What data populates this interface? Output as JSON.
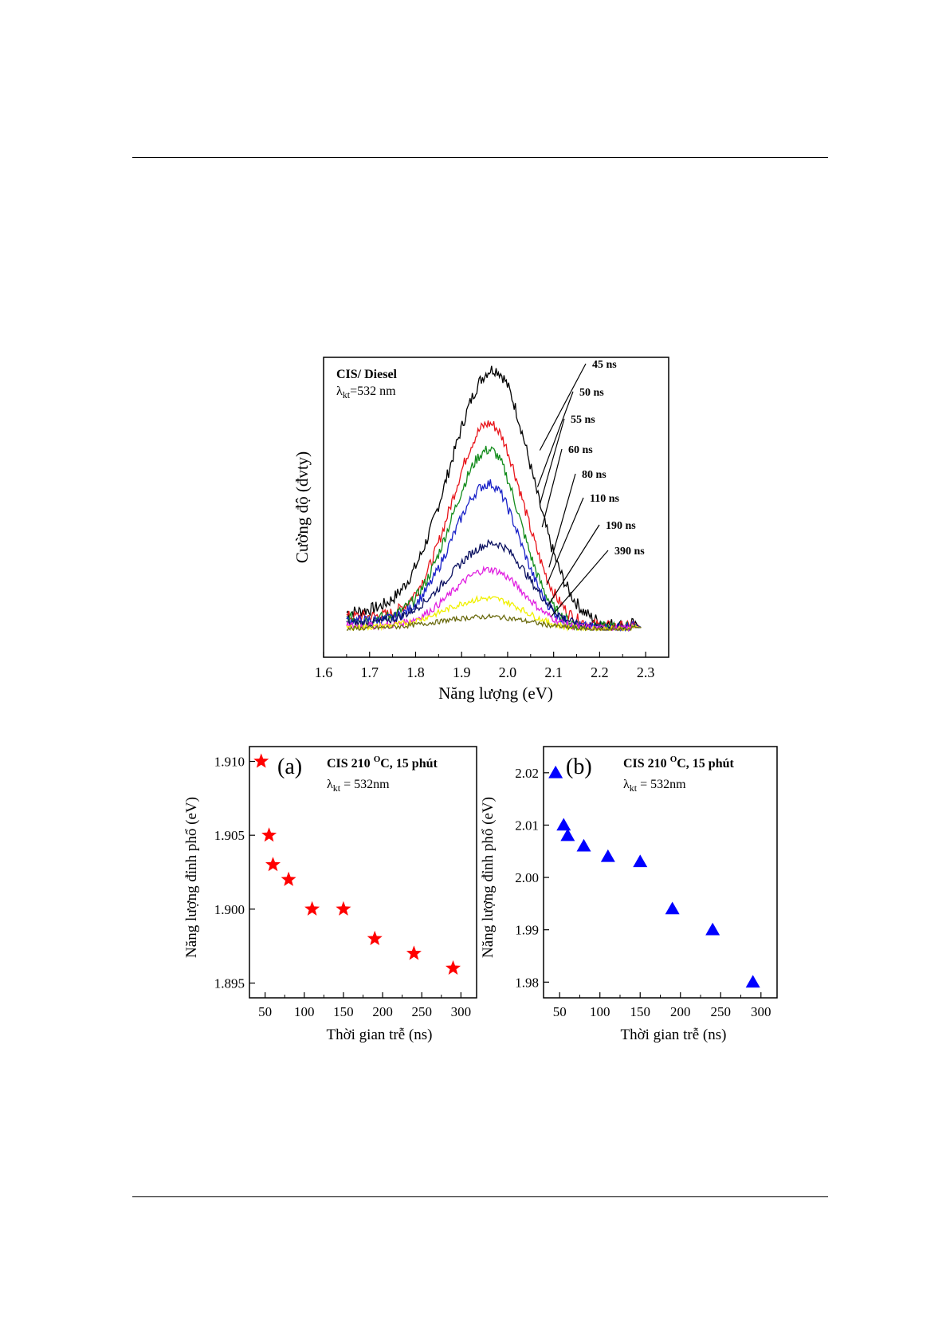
{
  "figure_spectra": {
    "info_line1": "CIS/ Diesel",
    "info_lambda_sym": "λ",
    "info_lambda_sub": "kt",
    "info_lambda_val": "=532 nm",
    "chart_data": {
      "type": "line",
      "xlabel": "Năng lượng (eV)",
      "ylabel": "Cường độ (đvty)",
      "xlim": [
        1.6,
        2.35
      ],
      "ylim": [
        0,
        1.1
      ],
      "xticks": [
        "1.6",
        "1.7",
        "1.8",
        "1.9",
        "2.0",
        "2.1",
        "2.2",
        "2.3"
      ],
      "x_range": [
        1.65,
        2.29
      ],
      "series": [
        {
          "name": "45 ns",
          "color": "#000000",
          "peak_x": 1.97,
          "peak_y": 1.0,
          "lw": 0.13,
          "rw": 0.11
        },
        {
          "name": "50 ns",
          "color": "#e8151b",
          "peak_x": 1.96,
          "peak_y": 0.79,
          "lw": 0.11,
          "rw": 0.1
        },
        {
          "name": "55 ns",
          "color": "#138c1c",
          "peak_x": 1.96,
          "peak_y": 0.69,
          "lw": 0.11,
          "rw": 0.09
        },
        {
          "name": "60 ns",
          "color": "#1a22c8",
          "peak_x": 1.96,
          "peak_y": 0.56,
          "lw": 0.11,
          "rw": 0.09
        },
        {
          "name": "80 ns",
          "color": "#0a1060",
          "peak_x": 1.97,
          "peak_y": 0.33,
          "lw": 0.13,
          "rw": 0.1
        },
        {
          "name": "110 ns",
          "color": "#e020e0",
          "peak_x": 1.96,
          "peak_y": 0.23,
          "lw": 0.11,
          "rw": 0.1
        },
        {
          "name": "190 ns",
          "color": "#f0f000",
          "peak_x": 1.96,
          "peak_y": 0.12,
          "lw": 0.13,
          "rw": 0.1
        },
        {
          "name": "390 ns",
          "color": "#6b6b10",
          "peak_x": 1.96,
          "peak_y": 0.05,
          "lw": 0.15,
          "rw": 0.12
        }
      ]
    }
  },
  "figure_a": {
    "panel_label": "(a)",
    "info_line1_pre": "CIS 210 ",
    "info_line1_sup": "O",
    "info_line1_post": "C, 15 phút",
    "info_lambda_sym": "λ",
    "info_lambda_sub": "kt",
    "info_lambda_val": " = 532nm",
    "chart_data": {
      "type": "scatter",
      "xlabel": "Thời gian trễ (ns)",
      "ylabel": "Năng lượng đỉnh phổ (eV)",
      "xlim": [
        30,
        320
      ],
      "ylim": [
        1.894,
        1.911
      ],
      "xticks": [
        "50",
        "100",
        "150",
        "200",
        "250",
        "300"
      ],
      "yticks": [
        "1.895",
        "1.900",
        "1.905",
        "1.910"
      ],
      "marker": "star",
      "color": "#ff0000",
      "x": [
        45,
        55,
        60,
        80,
        110,
        150,
        190,
        240,
        290
      ],
      "y": [
        1.91,
        1.905,
        1.903,
        1.902,
        1.9,
        1.9,
        1.898,
        1.897,
        1.896
      ]
    }
  },
  "figure_b": {
    "panel_label": "(b)",
    "info_line1_pre": "CIS 210 ",
    "info_line1_sup": "O",
    "info_line1_post": "C, 15 phút",
    "info_lambda_sym": "λ",
    "info_lambda_sub": "kt",
    "info_lambda_val": " = 532nm",
    "chart_data": {
      "type": "scatter",
      "xlabel": "Thời gian trễ (ns)",
      "ylabel": "Năng lượng đỉnh phổ (eV)",
      "xlim": [
        30,
        320
      ],
      "ylim": [
        1.977,
        2.025
      ],
      "xticks": [
        "50",
        "100",
        "150",
        "200",
        "250",
        "300"
      ],
      "yticks": [
        "1.98",
        "1.99",
        "2.00",
        "2.01",
        "2.02"
      ],
      "marker": "triangle",
      "color": "#0000ff",
      "x": [
        45,
        55,
        60,
        80,
        110,
        150,
        190,
        240,
        290
      ],
      "y": [
        2.02,
        2.01,
        2.008,
        2.006,
        2.004,
        2.003,
        1.994,
        1.99,
        1.98
      ]
    }
  }
}
